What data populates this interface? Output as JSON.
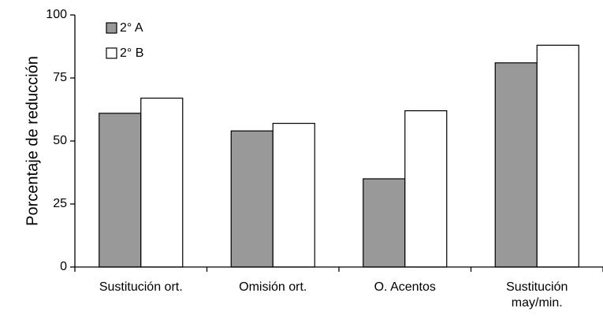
{
  "chart_data": {
    "type": "bar",
    "categories": [
      [
        "Sustitución ort."
      ],
      [
        "Omisión ort."
      ],
      [
        "O. Acentos"
      ],
      [
        "Sustitución",
        "may/min."
      ]
    ],
    "series": [
      {
        "name": "2° A",
        "values": [
          61,
          54,
          35,
          81
        ],
        "color": "#999999"
      },
      {
        "name": "2° B",
        "values": [
          67,
          57,
          62,
          88
        ],
        "color": "#ffffff"
      }
    ],
    "ylabel": "Porcentaje de reducción",
    "xlabel": "",
    "ylim": [
      0,
      100
    ],
    "yticks": [
      0,
      25,
      50,
      75,
      100
    ],
    "grid": false,
    "legend_position": "top-left"
  }
}
